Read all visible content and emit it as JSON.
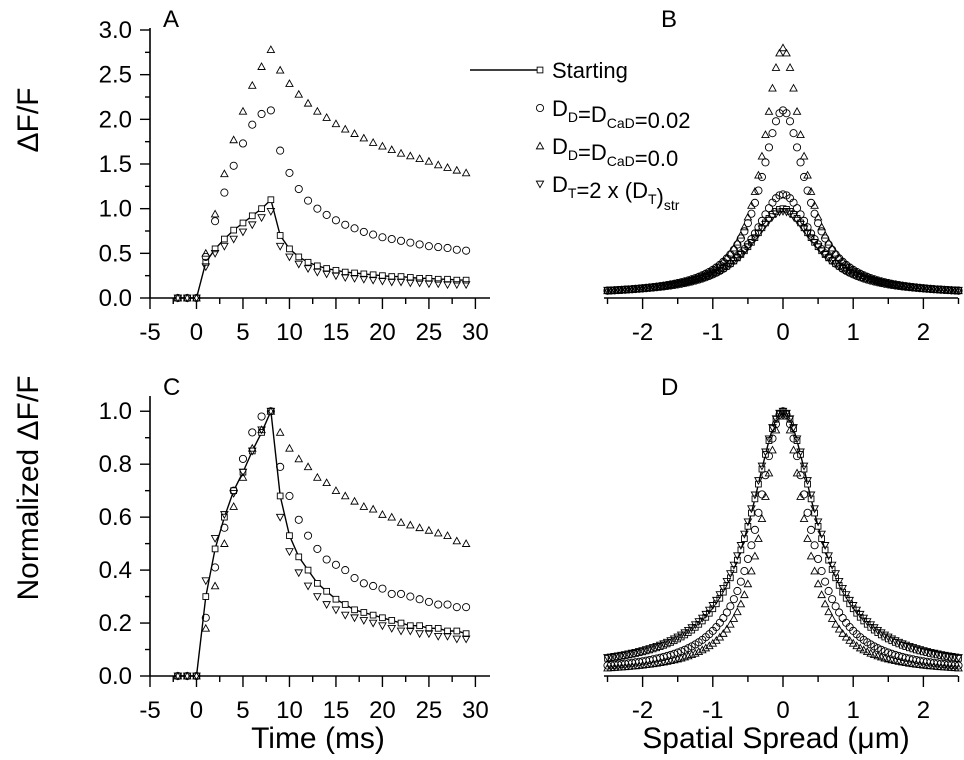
{
  "figure_ylabel_top": "ΔF/F",
  "figure_ylabel_bottom": "Normalized ΔF/F",
  "figure_xlabel_left": "Time (ms)",
  "figure_xlabel_right": "Spatial Spread (μm)",
  "legend": [
    {
      "marker": "square-line",
      "text": "Starting"
    },
    {
      "marker": "circle",
      "parts": [
        [
          "D",
          ""
        ],
        [
          "D",
          "sub"
        ],
        [
          "=",
          ""
        ],
        [
          "D",
          ""
        ],
        [
          "CaD",
          "sub"
        ],
        [
          "=0.02",
          ""
        ]
      ]
    },
    {
      "marker": "triangle-up",
      "parts": [
        [
          "D",
          ""
        ],
        [
          "D",
          "sub"
        ],
        [
          "=",
          ""
        ],
        [
          "D",
          ""
        ],
        [
          "CaD",
          "sub"
        ],
        [
          "=0.0",
          ""
        ]
      ]
    },
    {
      "marker": "triangle-down",
      "parts": [
        [
          "D",
          ""
        ],
        [
          "T",
          "sub"
        ],
        [
          "=2 x (D",
          ""
        ],
        [
          "T",
          "sub"
        ],
        [
          ")",
          ""
        ],
        [
          "str",
          "sub"
        ]
      ]
    }
  ],
  "chart_data": [
    {
      "panel": "A",
      "type": "scatter",
      "xlim": [
        -5,
        32
      ],
      "ylim": [
        0,
        3.0
      ],
      "xticks": [
        -5,
        0,
        5,
        10,
        15,
        20,
        25,
        30
      ],
      "yticks": [
        0.0,
        0.5,
        1.0,
        1.5,
        2.0,
        2.5,
        3.0
      ],
      "ytick_format": 1,
      "series": [
        {
          "marker": "square-line",
          "x": [
            -2,
            -1,
            0,
            1,
            2,
            3,
            4,
            5,
            6,
            7,
            8,
            9,
            10,
            11,
            12,
            13,
            14,
            15,
            16,
            17,
            18,
            19,
            20,
            21,
            22,
            23,
            24,
            25,
            26,
            27,
            28,
            29
          ],
          "values": [
            0,
            0,
            0,
            0.4,
            0.55,
            0.66,
            0.76,
            0.84,
            0.92,
            1.0,
            1.1,
            0.7,
            0.55,
            0.46,
            0.4,
            0.36,
            0.33,
            0.31,
            0.29,
            0.28,
            0.27,
            0.26,
            0.25,
            0.24,
            0.24,
            0.23,
            0.22,
            0.22,
            0.21,
            0.21,
            0.2,
            0.2
          ]
        },
        {
          "marker": "circle",
          "x": [
            -2,
            -1,
            0,
            1,
            2,
            3,
            4,
            5,
            6,
            7,
            8,
            9,
            10,
            11,
            12,
            13,
            14,
            15,
            16,
            17,
            18,
            19,
            20,
            21,
            22,
            23,
            24,
            25,
            26,
            27,
            28,
            29
          ],
          "values": [
            0,
            0,
            0,
            0.46,
            0.86,
            1.18,
            1.48,
            1.73,
            1.94,
            2.06,
            2.1,
            1.65,
            1.4,
            1.22,
            1.09,
            1.0,
            0.93,
            0.87,
            0.82,
            0.78,
            0.74,
            0.71,
            0.68,
            0.66,
            0.64,
            0.62,
            0.6,
            0.58,
            0.57,
            0.56,
            0.54,
            0.53
          ]
        },
        {
          "marker": "triangle-up",
          "x": [
            -2,
            -1,
            0,
            1,
            2,
            3,
            4,
            5,
            6,
            7,
            8,
            9,
            10,
            11,
            12,
            13,
            14,
            15,
            16,
            17,
            18,
            19,
            20,
            21,
            22,
            23,
            24,
            25,
            26,
            27,
            28,
            29
          ],
          "values": [
            0,
            0,
            0,
            0.5,
            0.94,
            1.39,
            1.77,
            2.09,
            2.38,
            2.59,
            2.78,
            2.55,
            2.4,
            2.28,
            2.18,
            2.09,
            2.02,
            1.95,
            1.89,
            1.84,
            1.79,
            1.74,
            1.7,
            1.66,
            1.62,
            1.59,
            1.56,
            1.53,
            1.49,
            1.46,
            1.43,
            1.4
          ]
        },
        {
          "marker": "triangle-down",
          "x": [
            -2,
            -1,
            0,
            1,
            2,
            3,
            4,
            5,
            6,
            7,
            8,
            9,
            10,
            11,
            12,
            13,
            14,
            15,
            16,
            17,
            18,
            19,
            20,
            21,
            22,
            23,
            24,
            25,
            26,
            27,
            28,
            29
          ],
          "values": [
            0,
            0,
            0,
            0.35,
            0.5,
            0.58,
            0.66,
            0.74,
            0.82,
            0.9,
            0.97,
            0.58,
            0.46,
            0.38,
            0.33,
            0.29,
            0.27,
            0.25,
            0.23,
            0.22,
            0.21,
            0.2,
            0.19,
            0.18,
            0.18,
            0.17,
            0.17,
            0.16,
            0.16,
            0.15,
            0.15,
            0.15
          ]
        }
      ]
    },
    {
      "panel": "B",
      "type": "scatter",
      "xlim": [
        -2.55,
        2.55
      ],
      "ylim": [
        0,
        3.0
      ],
      "xticks": [
        -2,
        -1,
        0,
        1,
        2
      ],
      "yticks": [],
      "curve_model": "profiles sampled from -2.5 to 2.5 um",
      "series": [
        {
          "marker": "square-line",
          "peak": 1.0,
          "width": 0.56,
          "baseline": 0.04
        },
        {
          "marker": "circle",
          "peak": 2.1,
          "width": 0.4,
          "baseline": 0.03
        },
        {
          "marker": "triangle-up",
          "peak": 2.8,
          "width": 0.34,
          "baseline": 0.03
        },
        {
          "marker": "triangle-down",
          "peak": 0.97,
          "width": 0.58,
          "baseline": 0.04
        },
        {
          "marker": "circle",
          "peak": 1.16,
          "width": 0.5,
          "baseline": 0.04
        }
      ]
    },
    {
      "panel": "C",
      "type": "scatter",
      "xlim": [
        -5,
        32
      ],
      "ylim": [
        0,
        1.05
      ],
      "xticks": [
        -5,
        0,
        5,
        10,
        15,
        20,
        25,
        30
      ],
      "yticks": [
        0.0,
        0.2,
        0.4,
        0.6,
        0.8,
        1.0
      ],
      "ytick_format": 1,
      "series": [
        {
          "marker": "square-line",
          "x": [
            -2,
            -1,
            0,
            1,
            2,
            3,
            4,
            5,
            6,
            7,
            8,
            9,
            10,
            11,
            12,
            13,
            14,
            15,
            16,
            17,
            18,
            19,
            20,
            21,
            22,
            23,
            24,
            25,
            26,
            27,
            28,
            29
          ],
          "values": [
            0,
            0,
            0,
            0.3,
            0.48,
            0.6,
            0.7,
            0.77,
            0.85,
            0.92,
            1.0,
            0.68,
            0.53,
            0.45,
            0.4,
            0.35,
            0.32,
            0.29,
            0.27,
            0.25,
            0.24,
            0.23,
            0.22,
            0.21,
            0.2,
            0.19,
            0.19,
            0.18,
            0.18,
            0.17,
            0.17,
            0.16
          ]
        },
        {
          "marker": "circle",
          "x": [
            -2,
            -1,
            0,
            1,
            2,
            3,
            4,
            5,
            6,
            7,
            8,
            9,
            10,
            11,
            12,
            13,
            14,
            15,
            16,
            17,
            18,
            19,
            20,
            21,
            22,
            23,
            24,
            25,
            26,
            27,
            28,
            29
          ],
          "values": [
            0,
            0,
            0,
            0.22,
            0.41,
            0.56,
            0.7,
            0.82,
            0.92,
            0.98,
            1.0,
            0.79,
            0.68,
            0.59,
            0.53,
            0.48,
            0.44,
            0.42,
            0.4,
            0.37,
            0.35,
            0.34,
            0.33,
            0.31,
            0.31,
            0.3,
            0.29,
            0.28,
            0.27,
            0.27,
            0.26,
            0.26
          ]
        },
        {
          "marker": "triangle-up",
          "x": [
            -2,
            -1,
            0,
            1,
            2,
            3,
            4,
            5,
            6,
            7,
            8,
            9,
            10,
            11,
            12,
            13,
            14,
            15,
            16,
            17,
            18,
            19,
            20,
            21,
            22,
            23,
            24,
            25,
            26,
            27,
            28,
            29
          ],
          "values": [
            0,
            0,
            0,
            0.18,
            0.34,
            0.5,
            0.64,
            0.75,
            0.86,
            0.93,
            1.0,
            0.92,
            0.86,
            0.82,
            0.79,
            0.75,
            0.73,
            0.7,
            0.68,
            0.66,
            0.64,
            0.63,
            0.61,
            0.6,
            0.58,
            0.57,
            0.56,
            0.55,
            0.54,
            0.53,
            0.51,
            0.5
          ]
        },
        {
          "marker": "triangle-down",
          "x": [
            -2,
            -1,
            0,
            1,
            2,
            3,
            4,
            5,
            6,
            7,
            8,
            9,
            10,
            11,
            12,
            13,
            14,
            15,
            16,
            17,
            18,
            19,
            20,
            21,
            22,
            23,
            24,
            25,
            26,
            27,
            28,
            29
          ],
          "values": [
            0,
            0,
            0,
            0.36,
            0.52,
            0.61,
            0.69,
            0.77,
            0.85,
            0.93,
            1.0,
            0.6,
            0.47,
            0.39,
            0.34,
            0.3,
            0.27,
            0.25,
            0.23,
            0.22,
            0.21,
            0.2,
            0.19,
            0.18,
            0.17,
            0.17,
            0.16,
            0.16,
            0.15,
            0.15,
            0.14,
            0.14
          ]
        }
      ]
    },
    {
      "panel": "D",
      "type": "scatter",
      "xlim": [
        -2.55,
        2.55
      ],
      "ylim": [
        0,
        1.05
      ],
      "xticks": [
        -2,
        -1,
        0,
        1,
        2
      ],
      "yticks": [],
      "curve_model": "normalized profiles sampled from -2.5 to 2.5 um",
      "series": [
        {
          "marker": "square-line",
          "peak": 1.0,
          "width": 0.56,
          "baseline": 0.02
        },
        {
          "marker": "circle",
          "peak": 1.0,
          "width": 0.44,
          "baseline": 0.01
        },
        {
          "marker": "triangle-up",
          "peak": 1.0,
          "width": 0.36,
          "baseline": 0.01
        },
        {
          "marker": "triangle-down",
          "peak": 1.0,
          "width": 0.58,
          "baseline": 0.02
        }
      ]
    }
  ]
}
